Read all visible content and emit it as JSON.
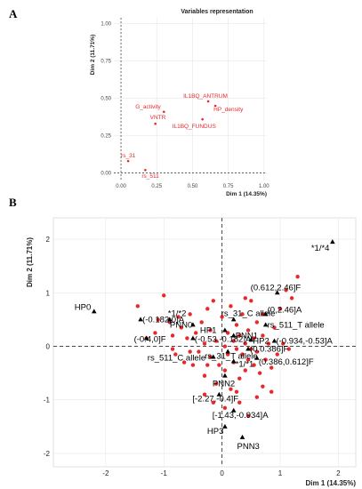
{
  "panels": {
    "a_label": "A",
    "b_label": "B"
  },
  "chart_data": [
    {
      "type": "scatter",
      "title": "Variables representation",
      "xlabel": "Dim 1 (14.35%)",
      "ylabel": "Dim 2 (11.71%)",
      "xlim": [
        -0.05,
        1.02
      ],
      "ylim": [
        -0.05,
        1.04
      ],
      "xticks": [
        "0.00",
        "0.25",
        "0.50",
        "0.75",
        "1.00"
      ],
      "yticks": [
        "0.00",
        "0.25",
        "0.50",
        "0.75",
        "1.00"
      ],
      "grid": true,
      "points": [
        {
          "label": "IL1BQ_ANTRUM",
          "x": 0.61,
          "y": 0.48
        },
        {
          "label": "HP_density",
          "x": 0.66,
          "y": 0.45
        },
        {
          "label": "G_activity",
          "x": 0.3,
          "y": 0.41
        },
        {
          "label": "VNTR",
          "x": 0.24,
          "y": 0.33
        },
        {
          "label": "IL1BQ_FUNDUS",
          "x": 0.57,
          "y": 0.36
        },
        {
          "label": "rs_31",
          "x": 0.05,
          "y": 0.08
        },
        {
          "label": "rs_511",
          "x": 0.17,
          "y": 0.02
        }
      ]
    },
    {
      "type": "scatter",
      "xlabel": "Dim 1 (14.35%)",
      "ylabel": "Dim 2 (11.71%)",
      "xlim": [
        -2.9,
        2.3
      ],
      "ylim": [
        -2.25,
        2.4
      ],
      "xticks": [
        "-2",
        "-1",
        "0",
        "1",
        "2"
      ],
      "yticks": [
        "-2",
        "-1",
        "0",
        "1",
        "2"
      ],
      "grid": true,
      "categories": [
        {
          "label": "*1/*4",
          "x": 1.9,
          "y": 1.95
        },
        {
          "label": "(0.612,2.46]F",
          "x": 0.95,
          "y": 1.0
        },
        {
          "label": "*1/*2",
          "x": -0.9,
          "y": 0.5
        },
        {
          "label": "rs_31_C allele",
          "x": 0.2,
          "y": 0.5
        },
        {
          "label": "(0,2.46]A",
          "x": 0.75,
          "y": 0.6
        },
        {
          "label": "HP0",
          "x": -2.2,
          "y": 0.65
        },
        {
          "label": "(-0.182,0]A",
          "x": -1.4,
          "y": 0.5
        },
        {
          "label": "PNN0",
          "x": -0.5,
          "y": 0.4
        },
        {
          "label": "HP1",
          "x": 0.05,
          "y": 0.3
        },
        {
          "label": "PNN1",
          "x": 0.2,
          "y": 0.2
        },
        {
          "label": "rs_511_T allele",
          "x": 0.75,
          "y": 0.4
        },
        {
          "label": "(-0.4,0]F",
          "x": -1.3,
          "y": 0.15
        },
        {
          "label": "(-0.53,-0.182]A",
          "x": -0.5,
          "y": 0.15
        },
        {
          "label": "HP2",
          "x": 0.5,
          "y": 0.12
        },
        {
          "label": "(-0.934,-0.53]A",
          "x": 0.9,
          "y": 0.1
        },
        {
          "label": "(0,0.386]F",
          "x": 0.45,
          "y": -0.05
        },
        {
          "label": "rs_31_T allele",
          "x": 0.1,
          "y": -0.1
        },
        {
          "label": "rs_511_C allele",
          "x": -0.15,
          "y": -0.2
        },
        {
          "label": "*1/*1",
          "x": 0.2,
          "y": -0.28
        },
        {
          "label": "(0.386,0.612]F",
          "x": 0.6,
          "y": -0.22
        },
        {
          "label": "PNN2",
          "x": 0.05,
          "y": -0.55
        },
        {
          "label": "[-2.27,-0.4]F",
          "x": -0.05,
          "y": -0.9
        },
        {
          "label": "[-1.43,-0.934]A",
          "x": 0.2,
          "y": -1.2
        },
        {
          "label": "HP3",
          "x": 0.05,
          "y": -1.5
        },
        {
          "label": "PNN3",
          "x": 0.35,
          "y": -1.7
        }
      ],
      "individuals": [
        [
          -1.45,
          0.75
        ],
        [
          -1.3,
          0.15
        ],
        [
          -1.15,
          0.25
        ],
        [
          -1.1,
          0.5
        ],
        [
          -1.0,
          0.95
        ],
        [
          -0.9,
          0.45
        ],
        [
          -0.85,
          0.2
        ],
        [
          -0.85,
          -0.05
        ],
        [
          -0.8,
          -0.15
        ],
        [
          -0.75,
          0.55
        ],
        [
          -0.7,
          0.35
        ],
        [
          -0.65,
          -0.3
        ],
        [
          -0.6,
          0.15
        ],
        [
          -0.55,
          0.6
        ],
        [
          -0.5,
          -0.35
        ],
        [
          -0.45,
          0.25
        ],
        [
          -0.4,
          -0.1
        ],
        [
          -0.35,
          0.45
        ],
        [
          -0.3,
          0.05
        ],
        [
          -0.3,
          -0.55
        ],
        [
          -0.25,
          0.7
        ],
        [
          -0.2,
          -0.2
        ],
        [
          -0.2,
          0.3
        ],
        [
          -0.15,
          0.85
        ],
        [
          -0.1,
          -0.7
        ],
        [
          -0.1,
          0.1
        ],
        [
          -0.05,
          -0.35
        ],
        [
          0.0,
          0.55
        ],
        [
          0.05,
          0.0
        ],
        [
          0.05,
          -0.45
        ],
        [
          0.1,
          0.25
        ],
        [
          0.1,
          -0.15
        ],
        [
          0.15,
          0.75
        ],
        [
          0.15,
          -0.8
        ],
        [
          0.2,
          0.1
        ],
        [
          0.2,
          -0.3
        ],
        [
          0.25,
          0.4
        ],
        [
          0.25,
          -0.05
        ],
        [
          0.3,
          -0.6
        ],
        [
          0.3,
          0.2
        ],
        [
          0.35,
          0.6
        ],
        [
          0.35,
          -0.15
        ],
        [
          0.4,
          0.05
        ],
        [
          0.4,
          -0.45
        ],
        [
          0.45,
          0.3
        ],
        [
          0.45,
          -0.25
        ],
        [
          0.5,
          0.85
        ],
        [
          0.5,
          -0.05
        ],
        [
          0.55,
          -0.35
        ],
        [
          0.55,
          0.15
        ],
        [
          0.6,
          0.45
        ],
        [
          0.6,
          -0.1
        ],
        [
          0.65,
          -0.5
        ],
        [
          0.7,
          0.2
        ],
        [
          0.7,
          0.6
        ],
        [
          0.75,
          -0.25
        ],
        [
          0.8,
          0.05
        ],
        [
          0.85,
          -0.4
        ],
        [
          0.9,
          0.35
        ],
        [
          0.95,
          -0.15
        ],
        [
          1.0,
          0.7
        ],
        [
          1.05,
          0.05
        ],
        [
          1.1,
          1.05
        ],
        [
          1.2,
          0.9
        ],
        [
          1.3,
          1.3
        ],
        [
          0.85,
          -0.85
        ],
        [
          0.6,
          -0.95
        ],
        [
          0.3,
          -1.05
        ],
        [
          0.05,
          -1.15
        ],
        [
          -0.15,
          -1.05
        ],
        [
          0.45,
          -1.3
        ],
        [
          0.7,
          -0.75
        ],
        [
          -0.3,
          -0.9
        ],
        [
          0.25,
          -0.85
        ],
        [
          1.15,
          -0.05
        ],
        [
          -0.55,
          -0.1
        ],
        [
          -0.25,
          -0.35
        ],
        [
          0.4,
          0.9
        ]
      ]
    }
  ],
  "colors": {
    "points": "#e8282a",
    "categories": "#000000",
    "grid": "#e6e6e6",
    "dashed": "#333333"
  }
}
